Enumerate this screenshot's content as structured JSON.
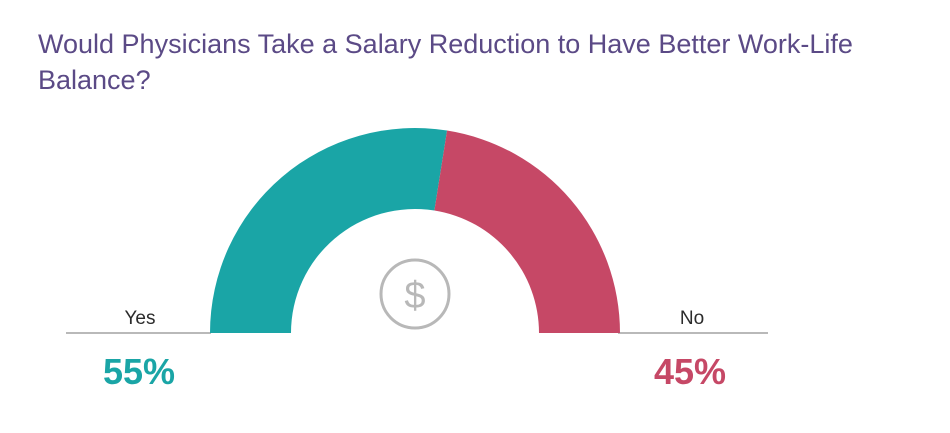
{
  "chart_data": {
    "type": "pie",
    "title": "Would Physicians Take a Salary Reduction to Have Better Work-Life Balance?",
    "categories": [
      "Yes",
      "No"
    ],
    "values": [
      55,
      45
    ],
    "value_labels": [
      "55%",
      "45%"
    ],
    "colors": [
      "#1aa5a6",
      "#c64866"
    ],
    "style": "half-donut gauge",
    "center_icon": "dollar-sign-icon",
    "center_icon_label": "$"
  }
}
